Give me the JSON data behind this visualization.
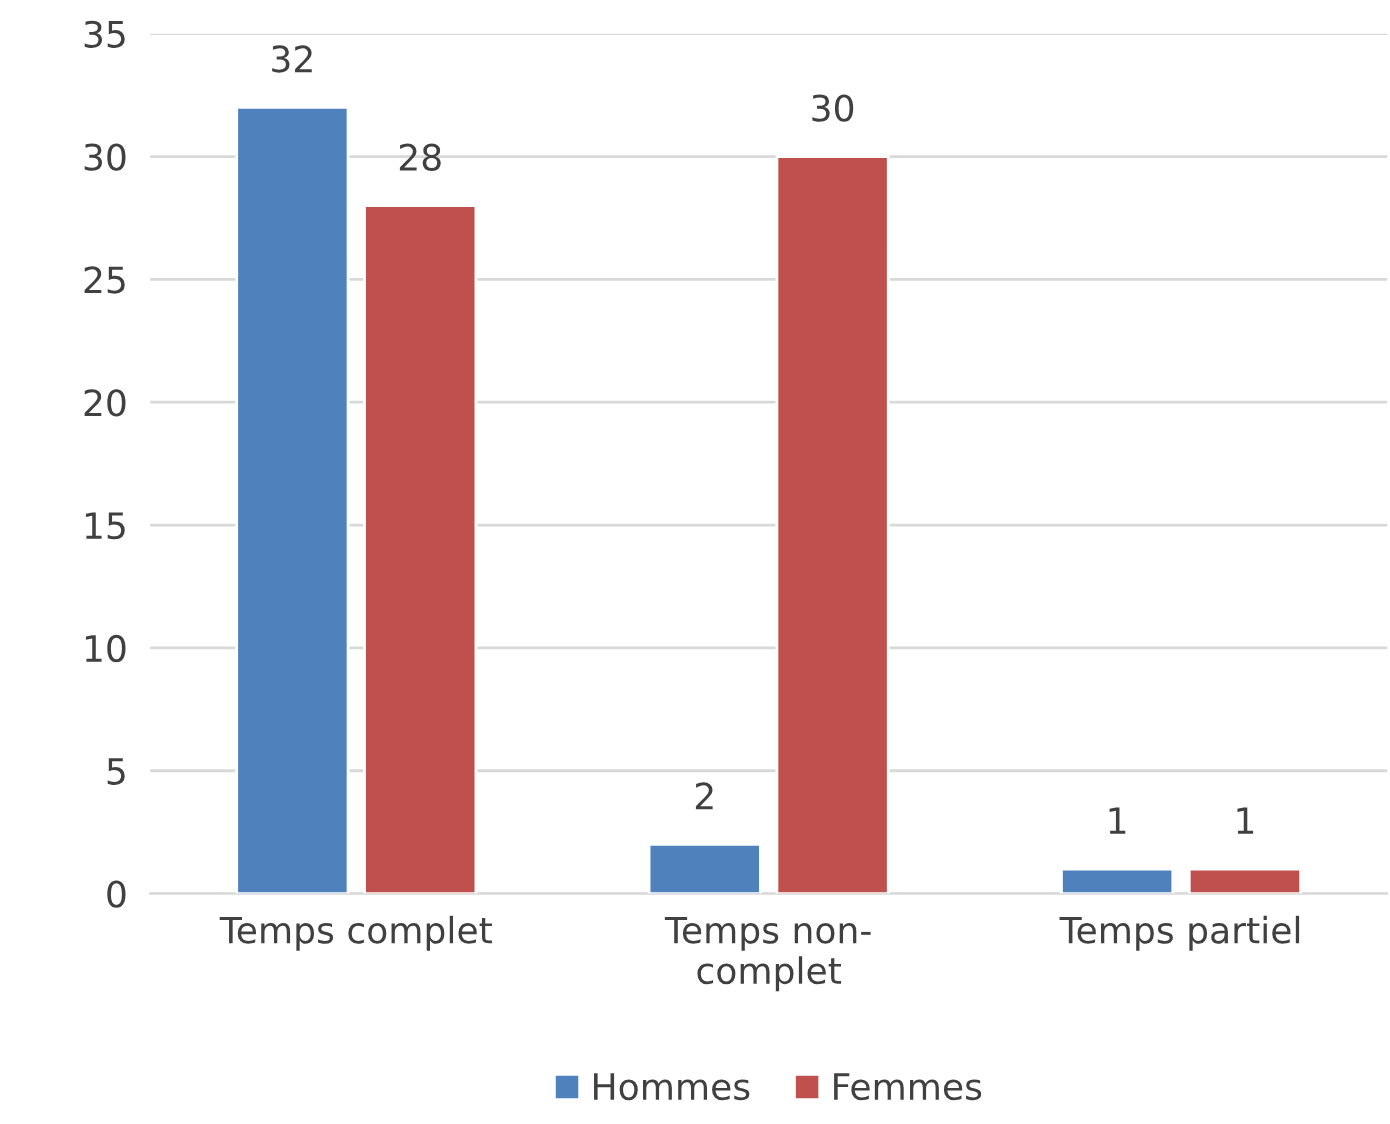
{
  "chart_data": {
    "type": "bar",
    "categories": [
      "Temps complet",
      "Temps non-complet",
      "Temps partiel"
    ],
    "series": [
      {
        "name": "Hommes",
        "color": "#4f81bd",
        "values": [
          32,
          2,
          1
        ]
      },
      {
        "name": "Femmes",
        "color": "#c0504d",
        "values": [
          28,
          30,
          1
        ]
      }
    ],
    "ylim": [
      0,
      35
    ],
    "yticks": [
      0,
      5,
      10,
      15,
      20,
      25,
      30,
      35
    ],
    "grid": "y",
    "legend": "bottom",
    "data_labels": true
  }
}
